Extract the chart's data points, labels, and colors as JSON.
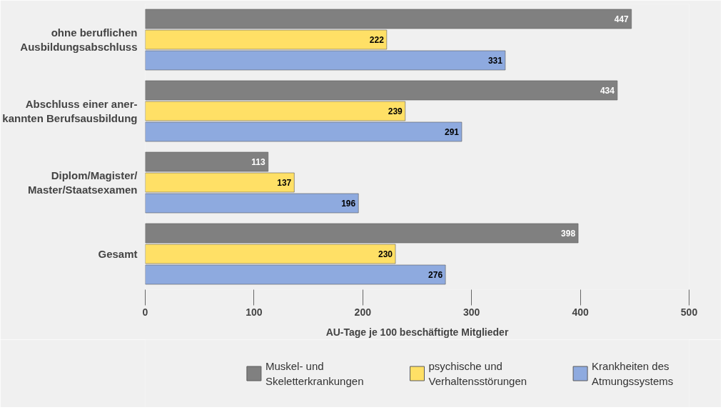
{
  "chart_data": {
    "type": "bar",
    "orientation": "horizontal",
    "xlabel": "AU-Tage je 100 beschäftigte Mitglieder",
    "categories": [
      "ohne beruflichen\nAusbildungsabschluss",
      "Abschluss einer aner-\nkannten Berufsausbildung",
      "Diplom/Magister/\nMaster/Staatsexamen",
      "Gesamt"
    ],
    "series": [
      {
        "name": "Muskel- und\nSkeletterkrankungen",
        "color": "#808080",
        "values": [
          447,
          434,
          113,
          398
        ]
      },
      {
        "name": "psychische und\nVerhaltensstörungen",
        "color": "#ffe066",
        "values": [
          222,
          239,
          137,
          230
        ]
      },
      {
        "name": "Krankheiten des\nAtmungssystems",
        "color": "#8eaadf",
        "values": [
          331,
          291,
          196,
          276
        ]
      }
    ],
    "xlim": [
      0,
      500
    ],
    "xticks": [
      0,
      100,
      200,
      300,
      400,
      500
    ],
    "data_labels": true,
    "legend": "bottom",
    "grid": false
  }
}
